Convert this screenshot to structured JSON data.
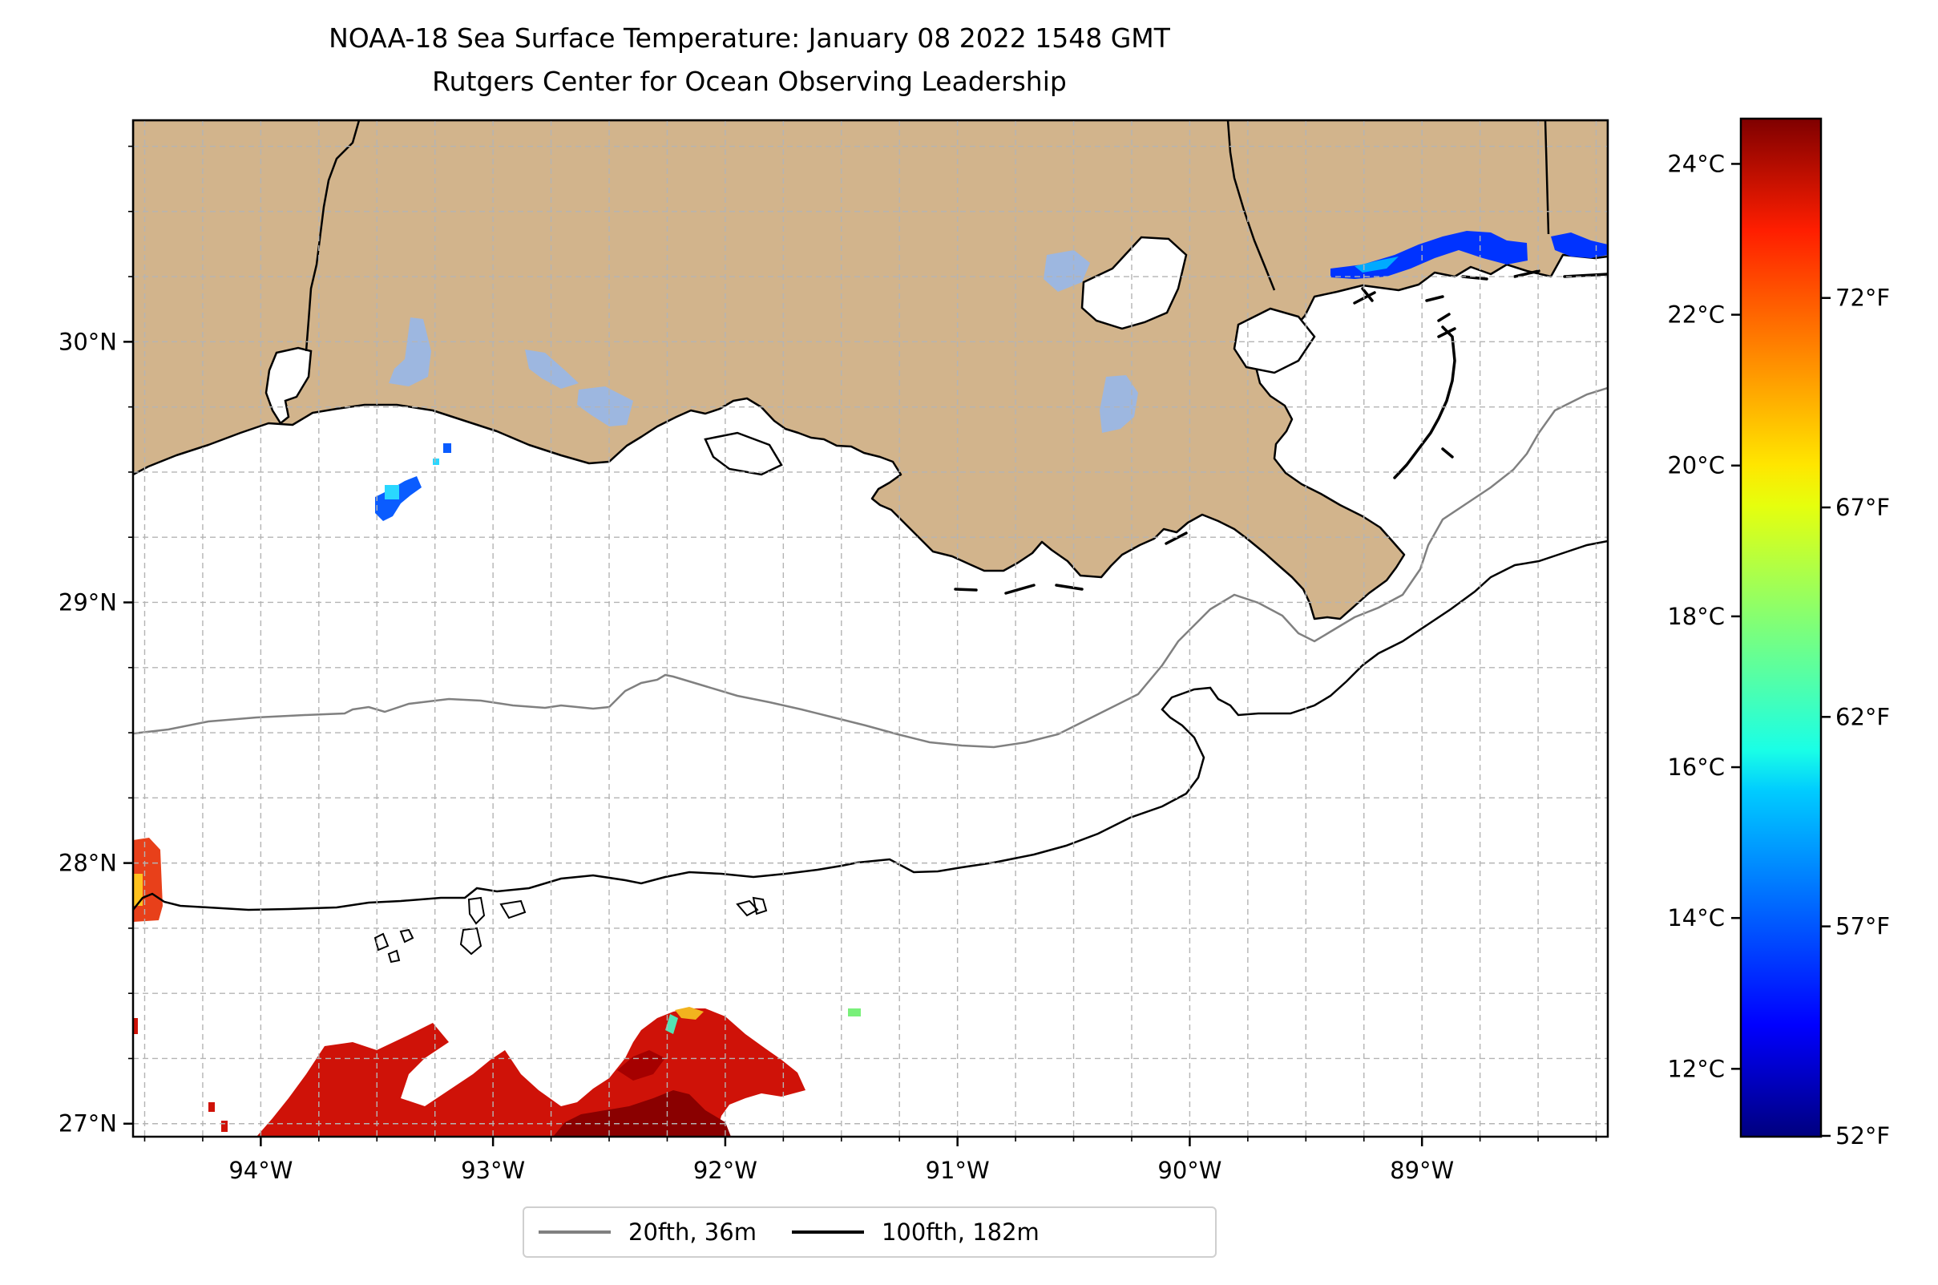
{
  "title": "NOAA-18 Sea Surface Temperature: January 08 2022 1548 GMT",
  "subtitle": "Rutgers Center for Ocean Observing Leadership",
  "map": {
    "lon_range": [
      -94.55,
      -88.2
    ],
    "lat_range": [
      26.95,
      30.85
    ],
    "lat_ticks": [
      "30°N",
      "29°N",
      "28°N",
      "27°N"
    ],
    "lon_ticks": [
      "94°W",
      "93°W",
      "92°W",
      "91°W",
      "90°W",
      "89°W"
    ],
    "land_color": "#d2b48c",
    "lake_color": "#9db7e0",
    "grid": "dashed, 0.25° spacing"
  },
  "colorbar": {
    "colormap": "jet",
    "range_c": [
      11.1,
      24.6
    ],
    "celsius_ticks": [
      "24°C",
      "22°C",
      "20°C",
      "18°C",
      "16°C",
      "14°C",
      "12°C"
    ],
    "fahrenheit_ticks": [
      "72°F",
      "67°F",
      "62°F",
      "57°F",
      "52°F"
    ]
  },
  "legend": {
    "items": [
      {
        "label": "20fth, 36m",
        "color": "#808080"
      },
      {
        "label": "100fth, 182m",
        "color": "#000000"
      }
    ]
  }
}
